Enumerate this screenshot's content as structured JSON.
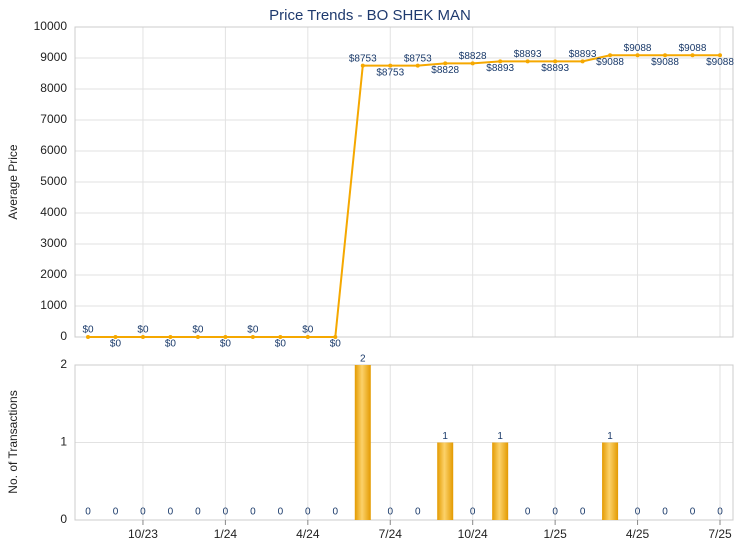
{
  "chart_data": [
    {
      "type": "line",
      "title": "Price Trends - BO SHEK MAN",
      "y_label": "Average Price",
      "color": "#f5a800",
      "grid": true,
      "values": [
        0,
        0,
        0,
        0,
        0,
        0,
        0,
        0,
        0,
        0,
        8753,
        8753,
        8753,
        8828,
        8828,
        8893,
        8893,
        8893,
        8893,
        9088,
        9088,
        9088,
        9088,
        9088
      ],
      "value_labels": [
        "$0",
        "$0",
        "$0",
        "$0",
        "$0",
        "$0",
        "$0",
        "$0",
        "$0",
        "$0",
        "$8753",
        "$8753",
        "$8753",
        "$8828",
        "$8828",
        "$8893",
        "$8893",
        "$8893",
        "$8893",
        "$9088",
        "$9088",
        "$9088",
        "$9088",
        "$9088"
      ],
      "ylim": [
        0,
        10000
      ],
      "yticks": [
        0,
        1000,
        2000,
        3000,
        4000,
        5000,
        6000,
        7000,
        8000,
        9000,
        10000
      ]
    },
    {
      "type": "bar",
      "y_label": "No. of Transactions",
      "color": "#f2a900",
      "grid": true,
      "categories": [
        null,
        null,
        "10/23",
        null,
        null,
        "1/24",
        null,
        null,
        "4/24",
        null,
        null,
        "7/24",
        null,
        null,
        "10/24",
        null,
        null,
        "1/25",
        null,
        null,
        "4/25",
        null,
        null,
        "7/25"
      ],
      "values": [
        0,
        0,
        0,
        0,
        0,
        0,
        0,
        0,
        0,
        0,
        2,
        0,
        0,
        1,
        0,
        1,
        0,
        0,
        0,
        1,
        0,
        0,
        0,
        0
      ],
      "ylim": [
        0,
        2
      ],
      "yticks": [
        0,
        1,
        2
      ]
    }
  ]
}
